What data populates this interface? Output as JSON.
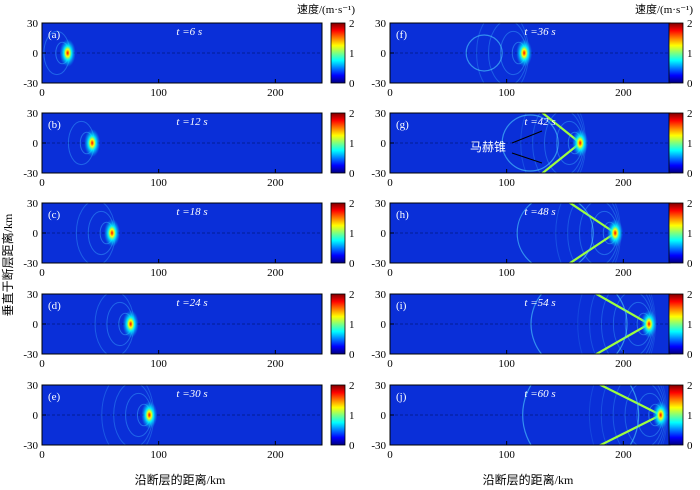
{
  "chart_data": {
    "type": "heatmap",
    "description_title": "",
    "xlabel": "沿断层的距离/km",
    "ylabel": "垂直于断层距离/km",
    "xlim": [
      0,
      240
    ],
    "ylim": [
      -30,
      30
    ],
    "xticks": [
      0,
      100,
      200
    ],
    "yticks": [
      -30,
      0,
      30
    ],
    "colorbar": {
      "title": "速度/(m·s⁻¹)",
      "range": [
        0,
        2
      ],
      "ticks": [
        0,
        1,
        2
      ],
      "colormap": "jet"
    },
    "annotation": {
      "text": "马赫锥",
      "panel": "(g)"
    },
    "panels": [
      {
        "label": "(a)",
        "time": "t =6 s",
        "rupture_front_x_km": 22
      },
      {
        "label": "(b)",
        "time": "t =12 s",
        "rupture_front_x_km": 43
      },
      {
        "label": "(c)",
        "time": "t =18 s",
        "rupture_front_x_km": 60
      },
      {
        "label": "(d)",
        "time": "t =24 s",
        "rupture_front_x_km": 76
      },
      {
        "label": "(e)",
        "time": "t =30 s",
        "rupture_front_x_km": 92
      },
      {
        "label": "(f)",
        "time": "t =36 s",
        "rupture_front_x_km": 115
      },
      {
        "label": "(g)",
        "time": "t =42 s",
        "rupture_front_x_km": 163
      },
      {
        "label": "(h)",
        "time": "t =48 s",
        "rupture_front_x_km": 193
      },
      {
        "label": "(i)",
        "time": "t =54 s",
        "rupture_front_x_km": 222
      },
      {
        "label": "(j)",
        "time": "t =60 s",
        "rupture_front_x_km": 232
      }
    ]
  },
  "colors": {
    "background": "#0a2fd8",
    "jet": [
      "#00007f",
      "#0000ff",
      "#007fff",
      "#00ffff",
      "#7fff7f",
      "#ffff00",
      "#ff7f00",
      "#ff0000",
      "#7f0000"
    ]
  }
}
